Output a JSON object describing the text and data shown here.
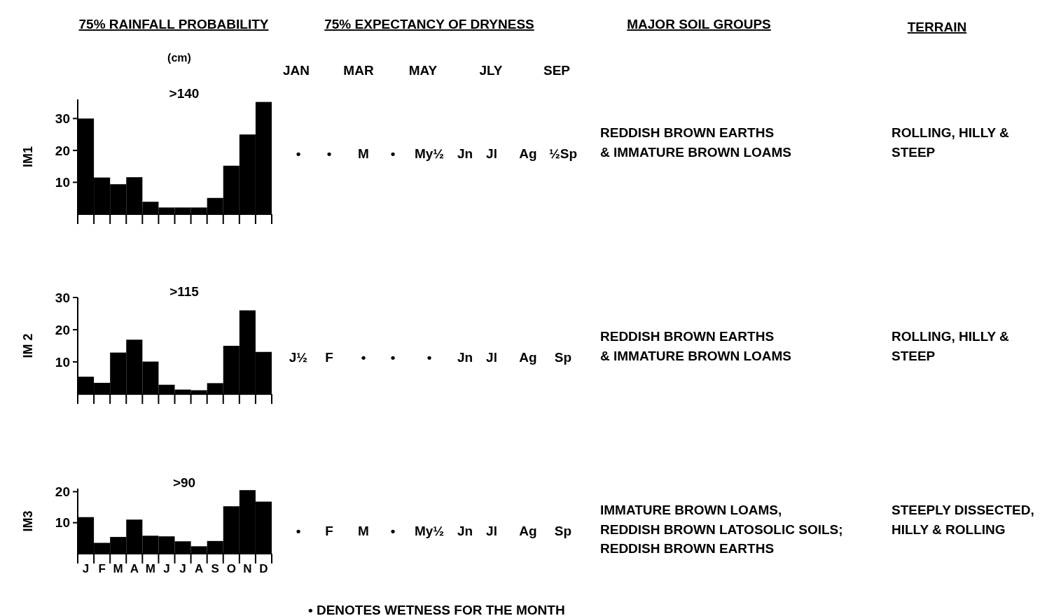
{
  "chart_data": [
    {
      "type": "bar",
      "title": "75% RAINFALL PROBABILITY",
      "subtitle": "(cm)",
      "ylabel": "IM1",
      "annotations": [
        ">140"
      ],
      "categories": [
        null,
        null,
        null,
        null,
        null,
        null,
        null,
        null,
        null,
        null,
        null,
        null
      ],
      "values": [
        30,
        11.5,
        9.4,
        11.6,
        3.9,
        2.1,
        2.1,
        2.1,
        5.1,
        15.2,
        25,
        35.2
      ],
      "color": "#000000",
      "ylim": [
        0,
        36
      ],
      "yticks": [
        10,
        20,
        30
      ]
    },
    {
      "type": "bar",
      "ylabel": "IM 2",
      "annotations": [
        ">115"
      ],
      "categories": [
        null,
        null,
        null,
        null,
        null,
        null,
        null,
        null,
        null,
        null,
        null,
        null
      ],
      "values": [
        5.4,
        3.5,
        12.9,
        16.9,
        10.1,
        2.9,
        1.4,
        1.2,
        3.4,
        15,
        26,
        13.1
      ],
      "color": "#000000",
      "ylim": [
        0,
        30
      ],
      "yticks": [
        10,
        20,
        30
      ]
    },
    {
      "type": "bar",
      "ylabel": "IM3",
      "annotations": [
        ">90"
      ],
      "categories": [
        "J",
        "F",
        "M",
        "A",
        "M",
        "J",
        "J",
        "A",
        "S",
        "O",
        "N",
        "D"
      ],
      "values": [
        11.8,
        3.5,
        5.4,
        11,
        5.8,
        5.6,
        4,
        2.4,
        4.1,
        15.3,
        20.5,
        16.8
      ],
      "color": "#000000",
      "ylim": [
        0,
        21
      ],
      "yticks": [
        10,
        20
      ]
    },
    {
      "type": "other",
      "annotations": [
        "75% EXPECTANCY OF DRYNESS",
        "MAJOR SOIL GROUPS",
        "TERRAIN",
        "JAN",
        "MAR",
        "MAY",
        "JLY",
        "SEP",
        "•",
        "•",
        "M",
        "•",
        "My½",
        "Jn",
        "Jl",
        "Ag",
        "½Sp",
        "REDDISH BROWN EARTHS\n& IMMATURE BROWN LOAMS",
        "ROLLING, HILLY &\nSTEEP",
        "J½",
        "F",
        "•",
        "•",
        "•",
        "Jn",
        "Jl",
        "Ag",
        "Sp",
        "REDDISH BROWN EARTHS\n& IMMATURE BROWN LOAMS",
        "ROLLING, HILLY &\nSTEEP",
        "•",
        "F",
        "M",
        "•",
        "My½",
        "Jn",
        "Jl",
        "Ag",
        "Sp",
        "IMMATURE BROWN LOAMS,\nREDDISH BROWN LATOSOLIC SOILS;\nREDDISH BROWN EARTHS",
        "STEEPLY DISSECTED,\nHILLY & ROLLING",
        "• DENOTES WETNESS FOR THE MONTH"
      ]
    }
  ]
}
